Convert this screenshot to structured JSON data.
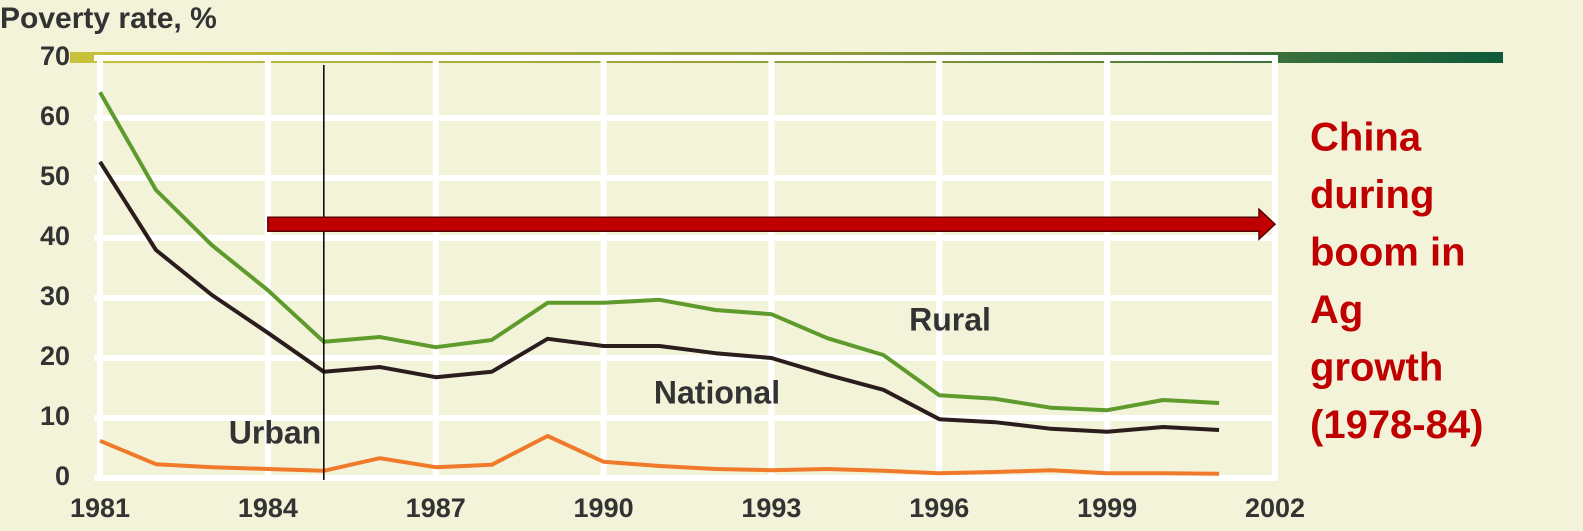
{
  "chart_data": {
    "type": "line",
    "title": "Poverty rate, %",
    "x": [
      1981,
      1982,
      1983,
      1984,
      1985,
      1986,
      1987,
      1988,
      1989,
      1990,
      1991,
      1992,
      1993,
      1994,
      1995,
      1996,
      1997,
      1998,
      1999,
      2000,
      2001
    ],
    "series": [
      {
        "name": "Rural",
        "color": "#5e9b2c",
        "values": [
          64.3,
          48,
          38.8,
          31.3,
          22.7,
          23.5,
          21.8,
          23,
          29.2,
          29.2,
          29.7,
          28,
          27.3,
          23.3,
          20.5,
          13.8,
          13.2,
          11.7,
          11.3,
          13,
          12.5
        ]
      },
      {
        "name": "National",
        "color": "#2b1d1d",
        "values": [
          52.7,
          38,
          30.5,
          24.2,
          17.7,
          18.5,
          16.8,
          17.7,
          23.2,
          22,
          22,
          20.8,
          20,
          17.2,
          14.7,
          9.8,
          9.3,
          8.2,
          7.7,
          8.5,
          8
        ]
      },
      {
        "name": "Urban",
        "color": "#f07a2a",
        "values": [
          6.2,
          2.3,
          1.8,
          1.5,
          1.2,
          3.3,
          1.8,
          2.2,
          7,
          2.7,
          2,
          1.5,
          1.3,
          1.5,
          1.2,
          0.8,
          1,
          1.3,
          0.8,
          0.8,
          0.7
        ]
      }
    ],
    "xlim": [
      1981,
      2002
    ],
    "xticks": [
      1981,
      1984,
      1987,
      1990,
      1993,
      1996,
      1999,
      2002
    ],
    "ylim": [
      0,
      70
    ],
    "yticks": [
      0,
      10,
      20,
      30,
      40,
      50,
      60,
      70
    ],
    "grid": true,
    "vline": 1985,
    "arrow": {
      "x": [
        1984,
        2002
      ],
      "y": 42.3
    },
    "annotation": [
      "China",
      "during",
      "boom in",
      "Ag",
      "growth",
      "(1978-84)"
    ]
  }
}
